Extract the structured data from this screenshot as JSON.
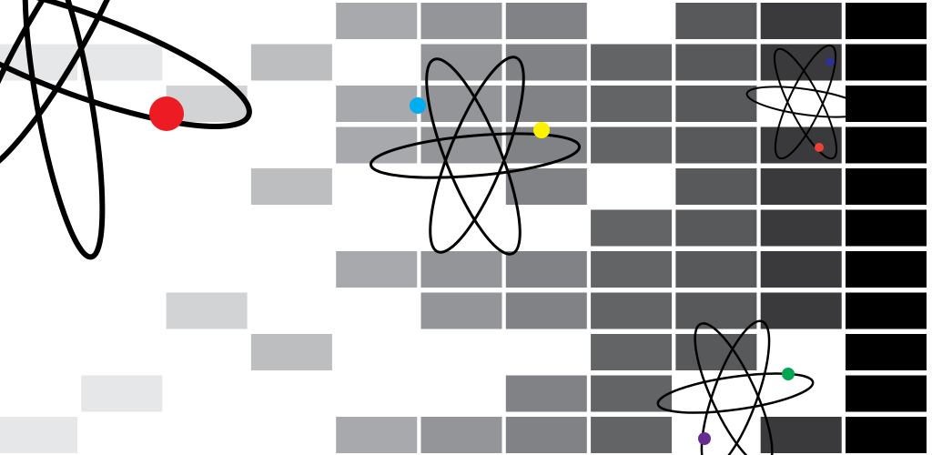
{
  "background_color": "#ffffff",
  "grid": {
    "columns": 11,
    "rows": 11,
    "column_shades": [
      "#e6e7e8",
      "#e6e7e8",
      "#d1d3d4",
      "#bcbec0",
      "#a7a9ac",
      "#939598",
      "#808285",
      "#636466",
      "#58595b",
      "#3a3a3c",
      "#000000"
    ],
    "filled_cells": [
      [
        0,
        1
      ],
      [
        0,
        10
      ],
      [
        1,
        1
      ],
      [
        1,
        9
      ],
      [
        2,
        2
      ],
      [
        2,
        7
      ],
      [
        3,
        1
      ],
      [
        3,
        4
      ],
      [
        3,
        8
      ],
      [
        4,
        0
      ],
      [
        4,
        2
      ],
      [
        4,
        3
      ],
      [
        4,
        6
      ],
      [
        4,
        10
      ],
      [
        5,
        0
      ],
      [
        5,
        1
      ],
      [
        5,
        2
      ],
      [
        5,
        3
      ],
      [
        5,
        6
      ],
      [
        5,
        7
      ],
      [
        5,
        10
      ],
      [
        6,
        0
      ],
      [
        6,
        1
      ],
      [
        6,
        2
      ],
      [
        6,
        3
      ],
      [
        6,
        4
      ],
      [
        6,
        6
      ],
      [
        6,
        7
      ],
      [
        6,
        9
      ],
      [
        6,
        10
      ],
      [
        7,
        1
      ],
      [
        7,
        2
      ],
      [
        7,
        3
      ],
      [
        7,
        5
      ],
      [
        7,
        6
      ],
      [
        7,
        7
      ],
      [
        7,
        8
      ],
      [
        7,
        9
      ],
      [
        7,
        10
      ],
      [
        8,
        0
      ],
      [
        8,
        1
      ],
      [
        8,
        2
      ],
      [
        8,
        3
      ],
      [
        8,
        4
      ],
      [
        8,
        5
      ],
      [
        8,
        6
      ],
      [
        8,
        7
      ],
      [
        8,
        8
      ],
      [
        9,
        0
      ],
      [
        9,
        1
      ],
      [
        9,
        3
      ],
      [
        9,
        4
      ],
      [
        9,
        5
      ],
      [
        9,
        6
      ],
      [
        9,
        7
      ],
      [
        9,
        10
      ],
      [
        10,
        0
      ],
      [
        10,
        1
      ],
      [
        10,
        2
      ],
      [
        10,
        3
      ],
      [
        10,
        4
      ],
      [
        10,
        5
      ],
      [
        10,
        6
      ],
      [
        10,
        7
      ],
      [
        10,
        8
      ],
      [
        10,
        9
      ],
      [
        10,
        10
      ]
    ]
  },
  "atoms": [
    {
      "name": "large-atom",
      "electrons": [
        "#ed1c24"
      ]
    },
    {
      "name": "center-atom",
      "electrons": [
        "#00aeef",
        "#fff200"
      ]
    },
    {
      "name": "top-right-atom",
      "electrons": [
        "#2e3192",
        "#ef4136"
      ]
    },
    {
      "name": "bottom-right-atom",
      "electrons": [
        "#00a651",
        "#662d91"
      ]
    }
  ]
}
